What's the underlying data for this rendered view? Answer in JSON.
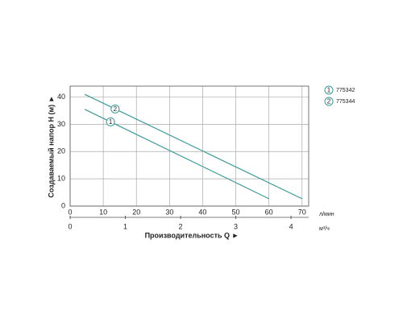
{
  "chart_data": {
    "type": "line",
    "ylabel": "Создаваемый напор H (м) ►",
    "xlabel": "Производительность Q ►",
    "x_unit": "л/мин",
    "x2_unit": "м³/ч",
    "xlim": [
      0,
      72
    ],
    "xticks": [
      0,
      10,
      20,
      30,
      40,
      50,
      60,
      70
    ],
    "x2lim": [
      0,
      4.32
    ],
    "x2ticks": [
      0,
      1,
      2,
      3,
      4
    ],
    "ylim": [
      0,
      44
    ],
    "yticks": [
      0,
      10,
      20,
      30,
      40
    ],
    "grid": true,
    "series": [
      {
        "name": "775342",
        "label": "1",
        "color": "#3a9a9a",
        "x": [
          4.4,
          60
        ],
        "values": [
          35.5,
          2.7
        ]
      },
      {
        "name": "775344",
        "label": "2",
        "color": "#3a9a9a",
        "x": [
          4.4,
          70
        ],
        "values": [
          41,
          2.7
        ]
      }
    ]
  }
}
